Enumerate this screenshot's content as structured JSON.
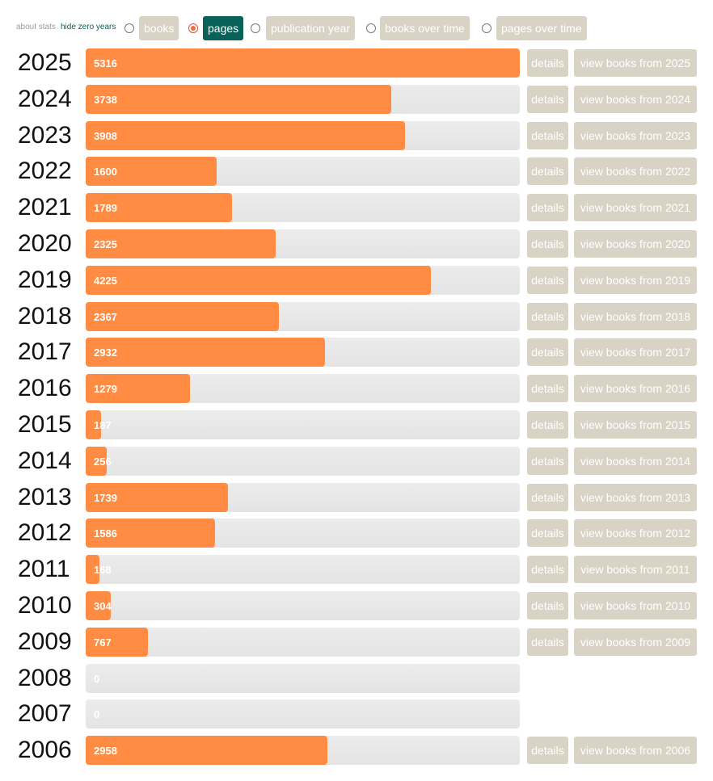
{
  "nav": {
    "about": "about stats",
    "hide_zero": "hide zero years",
    "options": [
      {
        "label": "books",
        "selected": false
      },
      {
        "label": "pages",
        "selected": true
      },
      {
        "label": "publication year",
        "selected": false
      },
      {
        "label": "books over time",
        "selected": false
      },
      {
        "label": "pages over time",
        "selected": false
      }
    ]
  },
  "chart_data": {
    "type": "bar",
    "orientation": "horizontal",
    "color": "#ff8c42",
    "xlim": [
      0,
      5316
    ],
    "categories": [
      "2025",
      "2024",
      "2023",
      "2022",
      "2021",
      "2020",
      "2019",
      "2018",
      "2017",
      "2016",
      "2015",
      "2014",
      "2013",
      "2012",
      "2011",
      "2010",
      "2009",
      "2008",
      "2007",
      "2006"
    ],
    "values": [
      5316,
      3738,
      3908,
      1600,
      1789,
      2325,
      4225,
      2367,
      2932,
      1279,
      187,
      256,
      1739,
      1586,
      168,
      304,
      767,
      0,
      0,
      2958
    ]
  },
  "actions": [
    {
      "details": "details",
      "view": "view books from 2025"
    },
    {
      "details": "details",
      "view": "view books from 2024"
    },
    {
      "details": "details",
      "view": "view books from 2023"
    },
    {
      "details": "details",
      "view": "view books from 2022"
    },
    {
      "details": "details",
      "view": "view books from 2021"
    },
    {
      "details": "details",
      "view": "view books from 2020"
    },
    {
      "details": "details",
      "view": "view books from 2019"
    },
    {
      "details": "details",
      "view": "view books from 2018"
    },
    {
      "details": "details",
      "view": "view books from 2017"
    },
    {
      "details": "details",
      "view": "view books from 2016"
    },
    {
      "details": "details",
      "view": "view books from 2015"
    },
    {
      "details": "details",
      "view": "view books from 2014"
    },
    {
      "details": "details",
      "view": "view books from 2013"
    },
    {
      "details": "details",
      "view": "view books from 2012"
    },
    {
      "details": "details",
      "view": "view books from 2011"
    },
    {
      "details": "details",
      "view": "view books from 2010"
    },
    {
      "details": "details",
      "view": "view books from 2009"
    },
    null,
    null,
    {
      "details": "details",
      "view": "view books from 2006"
    }
  ]
}
